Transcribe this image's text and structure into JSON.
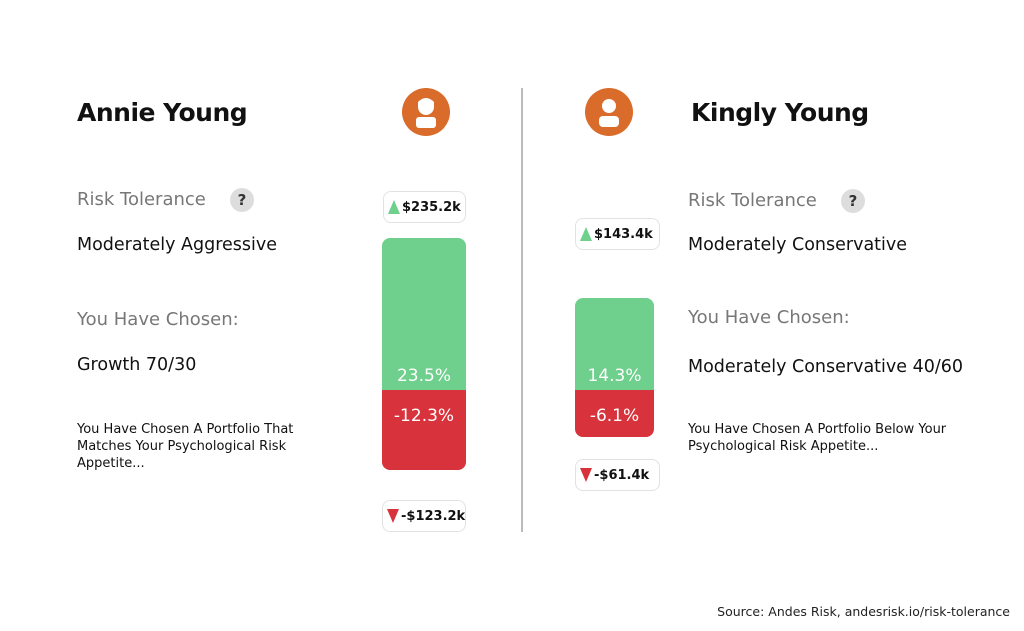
{
  "chart_data": [
    {
      "type": "bar",
      "name": "Annie Young",
      "risk_tolerance_label": "Risk Tolerance",
      "risk_tolerance": "Moderately Aggressive",
      "chosen_label": "You Have Chosen:",
      "chosen": "Growth 70/30",
      "description": "You Have Chosen A Portfolio That Matches Your Psychological Risk Appetite...",
      "upside_pct": 23.5,
      "downside_pct": -12.3,
      "upside_label": "23.5%",
      "downside_label": "-12.3%",
      "upside_amount": "$235.2k",
      "downside_amount": "-$123.2k",
      "avatar": "female-user-icon"
    },
    {
      "type": "bar",
      "name": "Kingly Young",
      "risk_tolerance_label": "Risk Tolerance",
      "risk_tolerance": "Moderately Conservative",
      "chosen_label": "You Have Chosen:",
      "chosen": "Moderately Conservative 40/60",
      "description": "You Have Chosen A Portfolio Below Your Psychological Risk Appetite...",
      "upside_pct": 14.3,
      "downside_pct": -6.1,
      "upside_label": "14.3%",
      "downside_label": "-6.1%",
      "upside_amount": "$143.4k",
      "downside_amount": "-$61.4k",
      "avatar": "user-icon"
    }
  ],
  "help_glyph": "?",
  "source": "Source: Andes Risk, andesrisk.io/risk-tolerance",
  "colors": {
    "gain": "#6fcf8c",
    "loss": "#d8333c",
    "avatar": "#d96b2b"
  }
}
